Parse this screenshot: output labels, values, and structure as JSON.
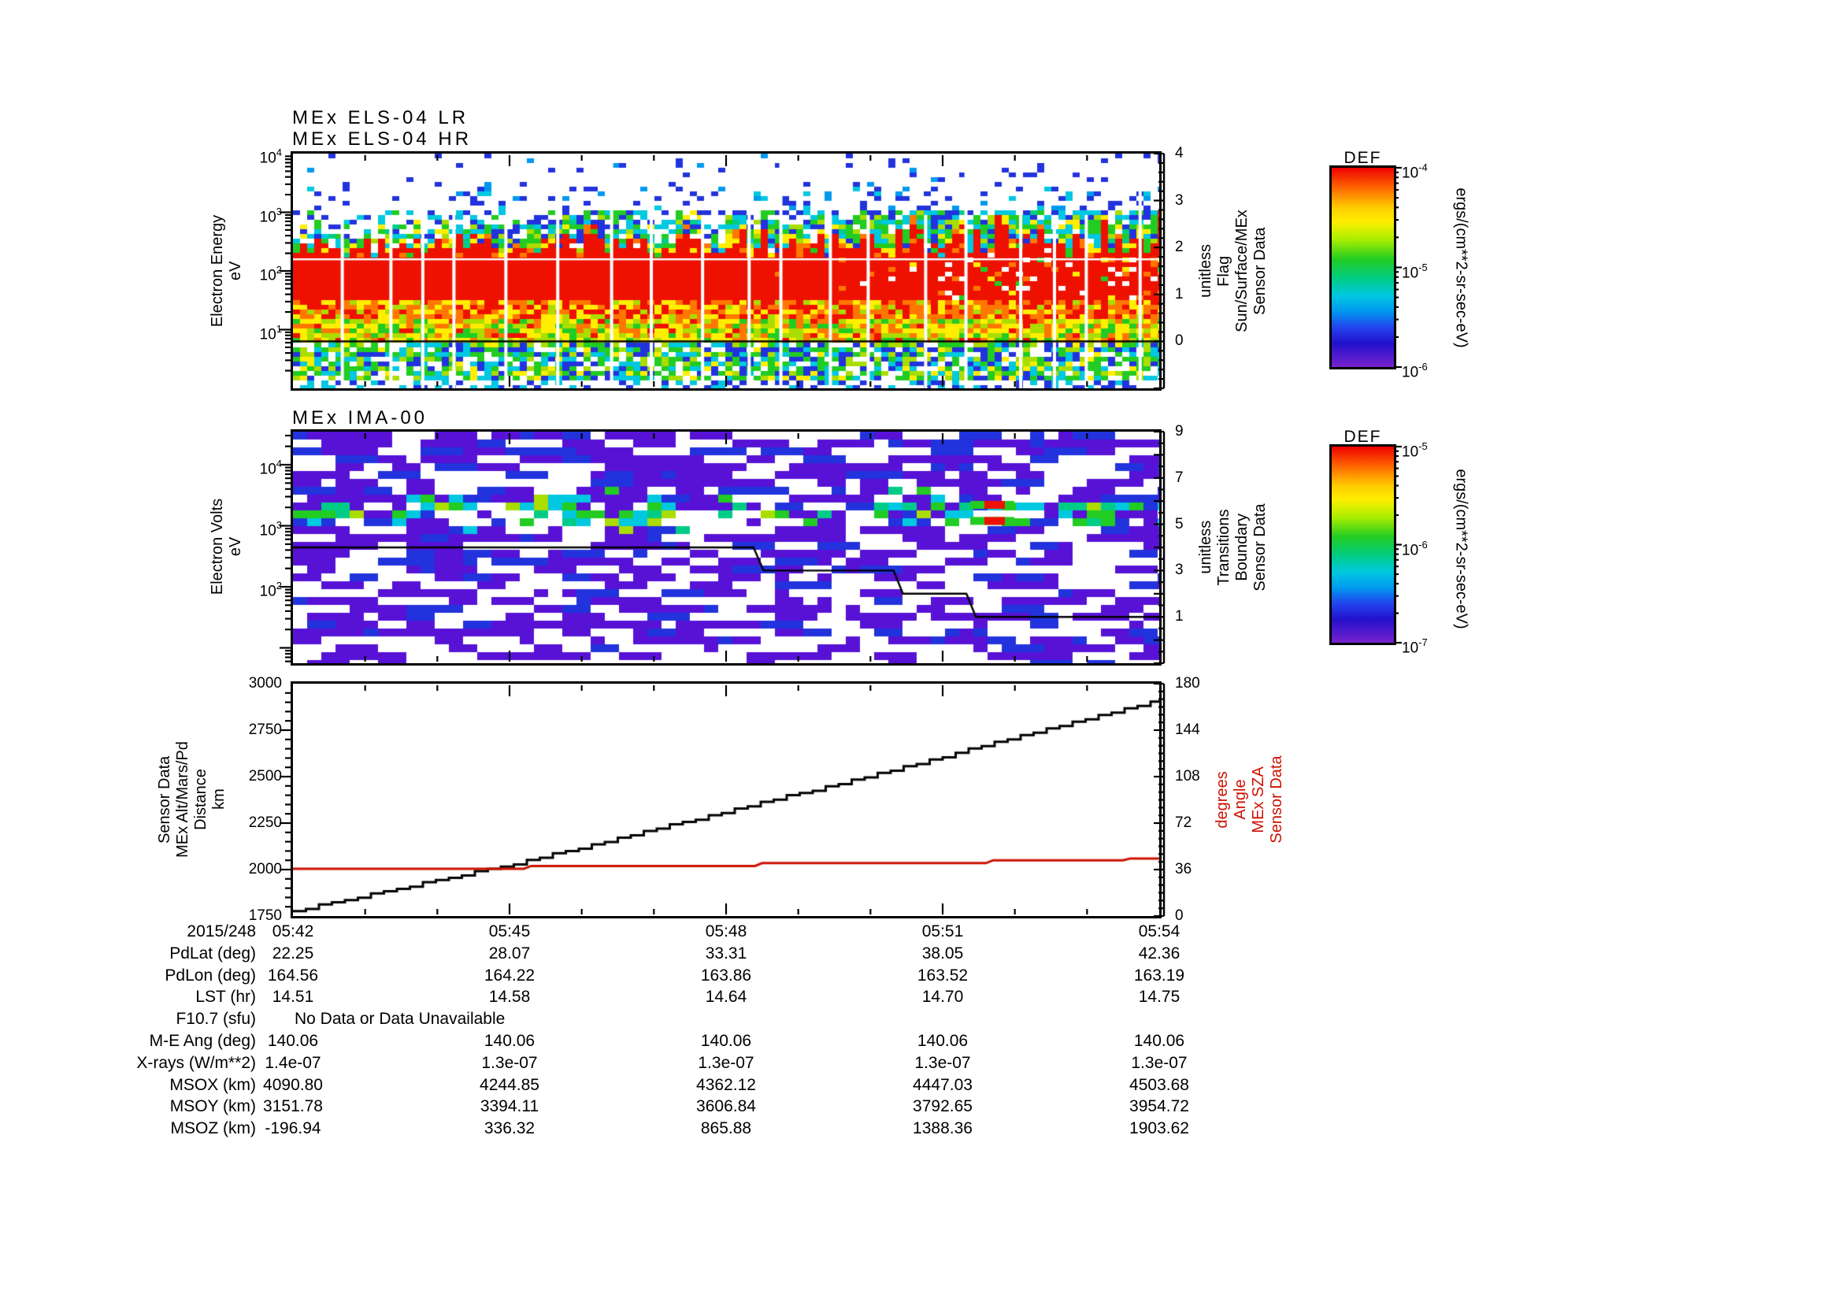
{
  "chart_data": {
    "time_axis": {
      "date": "2015/248",
      "tick_labels": [
        "05:42",
        "05:45",
        "05:48",
        "05:51",
        "05:54"
      ],
      "span_minutes": 12,
      "major_tick_minutes": 3,
      "minor_tick_minutes": 1
    },
    "els": {
      "type": "heatmap",
      "titles": [
        "MEx ELS-04 LR",
        "MEx ELS-04 HR"
      ],
      "ylabel_lines": [
        "Electron Energy",
        "eV"
      ],
      "y_scale": "log",
      "ylim_ev": [
        1,
        10000
      ],
      "y_tick_labels": [
        "10^4",
        "10^3",
        "10^2",
        "10^1"
      ],
      "flag_axis": {
        "label_lines": [
          "Sensor Data",
          "Sun/Surface/MEx",
          "Flag",
          "unitless"
        ],
        "tick_labels": [
          "4",
          "3",
          "2",
          "1",
          "0"
        ],
        "range": [
          -1,
          4
        ]
      },
      "flag_value": 0,
      "hr_lr_split_ev": 158,
      "colorbar": {
        "title": "DEF",
        "tick_labels": [
          "10^-4",
          "10^-5",
          "10^-6"
        ],
        "unit": "ergs/(cm**2-sr-sec-eV)"
      },
      "bands": [
        {
          "ev": [
            2600,
            10000
          ],
          "desc": "very sparse blue specks"
        },
        {
          "ev": [
            1100,
            2600
          ],
          "desc": "sparse blue/cyan specks"
        },
        {
          "ev": [
            350,
            1100
          ],
          "desc": "blue-cyan-green fringe, denser to the right"
        },
        {
          "ev": [
            160,
            350
          ],
          "desc": "ragged red tower tops with yellow/green fringe"
        },
        {
          "ev": [
            30,
            160
          ],
          "desc": "solid red band, patchy after 05:48"
        },
        {
          "ev": [
            14,
            30
          ],
          "desc": "red-orange-yellow mottle"
        },
        {
          "ev": [
            6,
            14
          ],
          "desc": "yellow-green-orange mottle"
        },
        {
          "ev": [
            1,
            6
          ],
          "desc": "green-cyan-blue speckle"
        }
      ]
    },
    "ima": {
      "type": "heatmap",
      "titles": [
        "MEx IMA-00"
      ],
      "ylabel_lines": [
        "Electron Volts",
        "eV"
      ],
      "y_scale": "log",
      "ylim_ev": [
        5.6,
        35000
      ],
      "y_tick_labels": [
        "10^4",
        "10^3",
        "10^2"
      ],
      "boundary_axis": {
        "label_lines": [
          "Sensor Data",
          "Boundary",
          "Transitions",
          "unitless"
        ],
        "tick_labels": [
          "9",
          "7",
          "5",
          "3",
          "1"
        ],
        "range": [
          -1,
          9
        ]
      },
      "transition_steps": [
        [
          0,
          4
        ],
        [
          6.38,
          4
        ],
        [
          6.52,
          3
        ],
        [
          8.32,
          3
        ],
        [
          8.45,
          2
        ],
        [
          9.33,
          2
        ],
        [
          9.46,
          1
        ],
        [
          12,
          1
        ]
      ],
      "band_intensity_per_min": [
        0.9,
        0.75,
        0.55,
        0.8,
        0.75,
        0.6,
        0.4,
        0.3,
        0.45,
        0.65,
        0.5,
        0.4
      ],
      "colorbar": {
        "title": "DEF",
        "tick_labels": [
          "10^-5",
          "10^-6",
          "10^-7"
        ],
        "unit": "ergs/(cm**2-sr-sec-eV)"
      }
    },
    "alt_sza": {
      "type": "line",
      "left_axis": {
        "label_lines": [
          "Sensor Data",
          "MEx Alt/Mars/Pd",
          "Distance",
          "km"
        ],
        "tick_labels": [
          "3000",
          "2750",
          "2500",
          "2250",
          "2000",
          "1750"
        ],
        "range": [
          1750,
          3000
        ]
      },
      "right_axis": {
        "label_lines": [
          "Sensor Data",
          "MEx SZA",
          "Angle",
          "degrees"
        ],
        "tick_labels": [
          "180",
          "144",
          "108",
          "72",
          "36",
          "0"
        ],
        "range": [
          0,
          180
        ],
        "color": "#cc1100"
      },
      "series": [
        {
          "name": "MEx Alt/Mars/Pd Distance",
          "units": "km",
          "color": "#000000",
          "points_min_km": [
            [
              0,
              1778
            ],
            [
              1,
              1860
            ],
            [
              2,
              1945
            ],
            [
              3,
              2025
            ],
            [
              4,
              2120
            ],
            [
              5,
              2218
            ],
            [
              6,
              2314
            ],
            [
              7,
              2410
            ],
            [
              8,
              2510
            ],
            [
              9,
              2610
            ],
            [
              10,
              2712
            ],
            [
              11,
              2815
            ],
            [
              12,
              2912
            ]
          ]
        },
        {
          "name": "MEx SZA Angle",
          "units": "degrees",
          "color": "#cc1100",
          "points_min_deg": [
            [
              0,
              36.6
            ],
            [
              3.2,
              36.6
            ],
            [
              3.3,
              38.8
            ],
            [
              6.4,
              38.8
            ],
            [
              6.5,
              41.0
            ],
            [
              9.6,
              41.0
            ],
            [
              9.7,
              43.2
            ],
            [
              11.5,
              43.2
            ],
            [
              11.6,
              44.6
            ],
            [
              12,
              44.6
            ]
          ]
        }
      ]
    }
  },
  "table": {
    "date": "2015/248",
    "columns": [
      "05:42",
      "05:45",
      "05:48",
      "05:51",
      "05:54"
    ],
    "rows": [
      {
        "label": "PdLat (deg)",
        "values": [
          "22.25",
          "28.07",
          "33.31",
          "38.05",
          "42.36"
        ]
      },
      {
        "label": "PdLon (deg)",
        "values": [
          "164.56",
          "164.22",
          "163.86",
          "163.52",
          "163.19"
        ]
      },
      {
        "label": "LST (hr)",
        "values": [
          "14.51",
          "14.58",
          "14.64",
          "14.70",
          "14.75"
        ]
      },
      {
        "label": "F10.7 (sfu)",
        "span": "No Data or Data Unavailable"
      },
      {
        "label": "M-E Ang (deg)",
        "values": [
          "140.06",
          "140.06",
          "140.06",
          "140.06",
          "140.06"
        ]
      },
      {
        "label": "X-rays (W/m**2)",
        "values": [
          "1.4e-07",
          "1.3e-07",
          "1.3e-07",
          "1.3e-07",
          "1.3e-07"
        ]
      },
      {
        "label": "MSOX (km)",
        "values": [
          "4090.80",
          "4244.85",
          "4362.12",
          "4447.03",
          "4503.68"
        ]
      },
      {
        "label": "MSOY (km)",
        "values": [
          "3151.78",
          "3394.11",
          "3606.84",
          "3792.65",
          "3954.72"
        ]
      },
      {
        "label": "MSOZ (km)",
        "values": [
          "-196.94",
          "336.32",
          "865.88",
          "1388.36",
          "1903.62"
        ]
      }
    ]
  },
  "palette": {
    "red": "#ee1100",
    "orange": "#ff7700",
    "yellow": "#ffee00",
    "yellow_green": "#aadd00",
    "green": "#22cc22",
    "teal": "#00cc88",
    "cyan": "#00c8e0",
    "light_blue": "#0099ee",
    "blue": "#2233dd",
    "dark_blue": "#1111aa",
    "purple": "#5712d6",
    "violet": "#6a22cc",
    "line_black": "#000000",
    "line_red": "#cc1100"
  },
  "colorbar_gradient": [
    [
      0,
      "#ee0000"
    ],
    [
      0.1,
      "#ff6600"
    ],
    [
      0.2,
      "#ffcc00"
    ],
    [
      0.27,
      "#ffee00"
    ],
    [
      0.36,
      "#aaee00"
    ],
    [
      0.46,
      "#22cc22"
    ],
    [
      0.56,
      "#00cc88"
    ],
    [
      0.64,
      "#00c8e0"
    ],
    [
      0.72,
      "#0099ee"
    ],
    [
      0.8,
      "#2244ee"
    ],
    [
      0.88,
      "#2211cc"
    ],
    [
      1,
      "#7722cc"
    ]
  ]
}
